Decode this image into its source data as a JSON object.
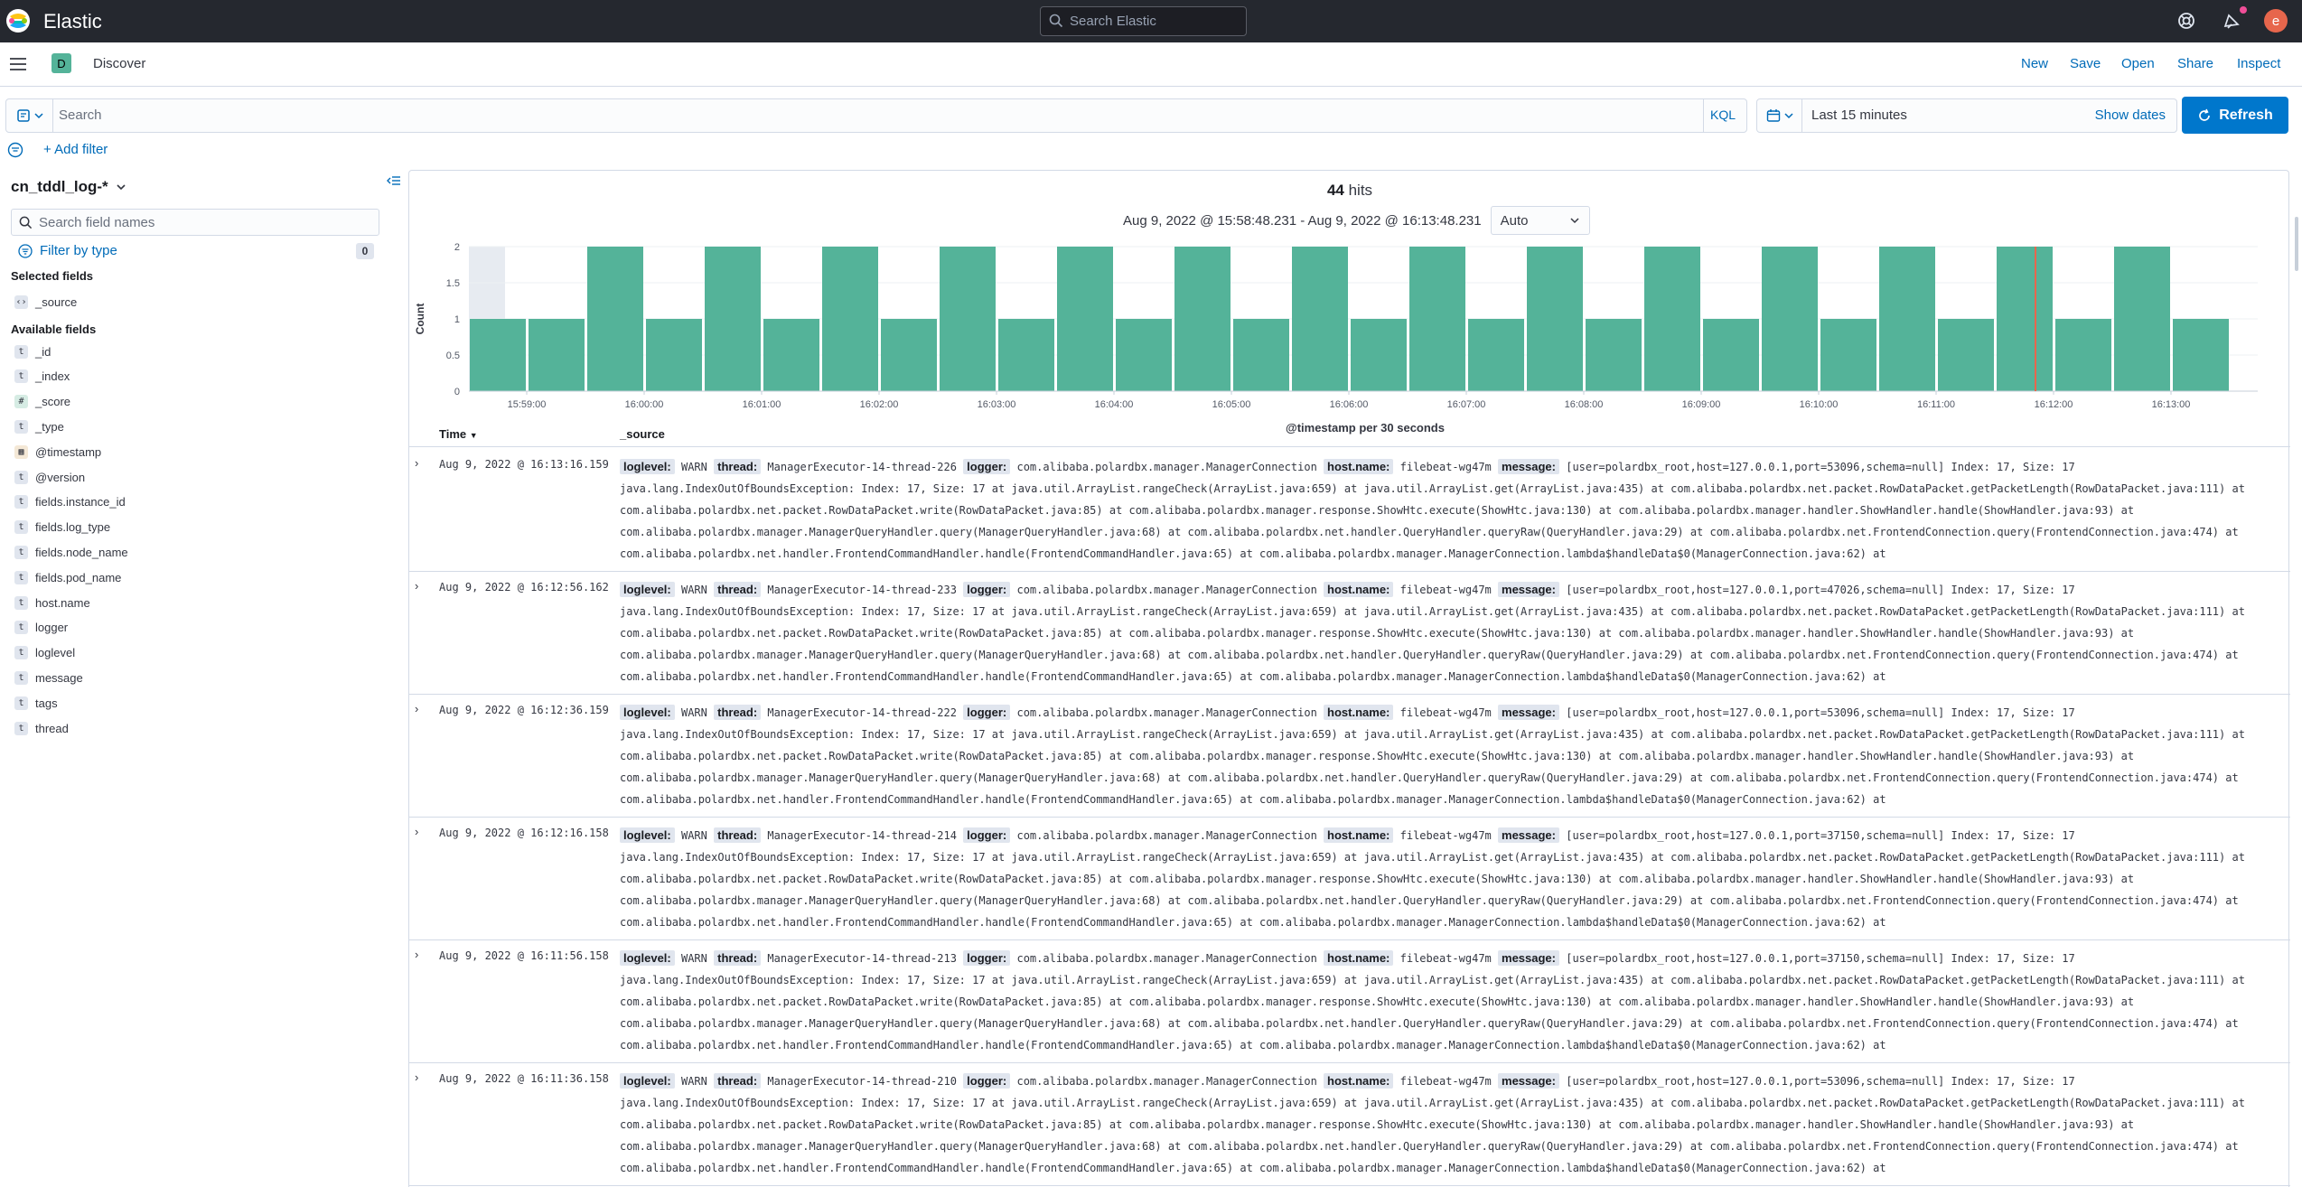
{
  "topbar": {
    "brand": "Elastic",
    "search_placeholder": "Search Elastic",
    "avatar_letter": "e"
  },
  "subbar": {
    "space_letter": "D",
    "breadcrumb": "Discover",
    "actions": [
      "New",
      "Save",
      "Open",
      "Share",
      "Inspect"
    ]
  },
  "query": {
    "placeholder": "Search",
    "language": "KQL",
    "time_range": "Last 15 minutes",
    "show_dates": "Show dates",
    "refresh": "Refresh"
  },
  "filters": {
    "add_filter": "+ Add filter"
  },
  "sidebar": {
    "index_pattern": "cn_tddl_log-*",
    "field_search_placeholder": "Search field names",
    "filter_by_type": "Filter by type",
    "filter_count": "0",
    "selected_heading": "Selected fields",
    "selected_fields": [
      {
        "name": "_source",
        "type": "source"
      }
    ],
    "available_heading": "Available fields",
    "available_fields": [
      {
        "name": "_id",
        "type": "t"
      },
      {
        "name": "_index",
        "type": "t"
      },
      {
        "name": "_score",
        "type": "#"
      },
      {
        "name": "_type",
        "type": "t"
      },
      {
        "name": "@timestamp",
        "type": "date"
      },
      {
        "name": "@version",
        "type": "t"
      },
      {
        "name": "fields.instance_id",
        "type": "t"
      },
      {
        "name": "fields.log_type",
        "type": "t"
      },
      {
        "name": "fields.node_name",
        "type": "t"
      },
      {
        "name": "fields.pod_name",
        "type": "t"
      },
      {
        "name": "host.name",
        "type": "t"
      },
      {
        "name": "logger",
        "type": "t"
      },
      {
        "name": "loglevel",
        "type": "t"
      },
      {
        "name": "message",
        "type": "t"
      },
      {
        "name": "tags",
        "type": "t"
      },
      {
        "name": "thread",
        "type": "t"
      }
    ]
  },
  "results": {
    "hits_count": "44",
    "hits_label": "hits",
    "range_label": "Aug 9, 2022 @ 15:58:48.231 - Aug 9, 2022 @ 16:13:48.231",
    "interval": "Auto"
  },
  "chart_data": {
    "type": "bar",
    "color": "#54b399",
    "ylabel": "Count",
    "xlabel": "@timestamp per 30 seconds",
    "ylim": [
      0,
      2
    ],
    "yticks": [
      "0",
      "0.5",
      "1",
      "1.5",
      "2"
    ],
    "xticks": [
      "15:59:00",
      "16:00:00",
      "16:01:00",
      "16:02:00",
      "16:03:00",
      "16:04:00",
      "16:05:00",
      "16:06:00",
      "16:07:00",
      "16:08:00",
      "16:09:00",
      "16:10:00",
      "16:11:00",
      "16:12:00",
      "16:13:00"
    ],
    "values": [
      1,
      1,
      2,
      1,
      2,
      1,
      2,
      1,
      2,
      1,
      2,
      1,
      2,
      1,
      2,
      1,
      2,
      1,
      2,
      1,
      2,
      1,
      2,
      1,
      2,
      1,
      2,
      1,
      2,
      1
    ]
  },
  "table": {
    "col_time": "Time",
    "col_source": "_source",
    "rows": [
      {
        "time": "Aug 9, 2022 @ 16:13:16.159",
        "thread": "ManagerExecutor-14-thread-226",
        "port": "53096"
      },
      {
        "time": "Aug 9, 2022 @ 16:12:56.162",
        "thread": "ManagerExecutor-14-thread-233",
        "port": "47026"
      },
      {
        "time": "Aug 9, 2022 @ 16:12:36.159",
        "thread": "ManagerExecutor-14-thread-222",
        "port": "53096"
      },
      {
        "time": "Aug 9, 2022 @ 16:12:16.158",
        "thread": "ManagerExecutor-14-thread-214",
        "port": "37150"
      },
      {
        "time": "Aug 9, 2022 @ 16:11:56.158",
        "thread": "ManagerExecutor-14-thread-213",
        "port": "37150"
      },
      {
        "time": "Aug 9, 2022 @ 16:11:36.158",
        "thread": "ManagerExecutor-14-thread-210",
        "port": "53096"
      }
    ],
    "common": {
      "loglevel_key": "loglevel:",
      "loglevel": "WARN",
      "thread_key": "thread:",
      "logger_key": "logger:",
      "logger": "com.alibaba.polardbx.manager.ManagerConnection",
      "host_key": "host.name:",
      "host": "filebeat-wg47m",
      "message_key": "message:",
      "msg_pre": "[user=polardbx_root,host=127.0.0.1,port=",
      "msg_post": ",schema=null] Index: 17, Size: 17",
      "line2": "java.lang.IndexOutOfBoundsException: Index: 17, Size: 17 at java.util.ArrayList.rangeCheck(ArrayList.java:659) at java.util.ArrayList.get(ArrayList.java:435) at com.alibaba.polardbx.net.packet.RowDataPacket.getPacketLength(RowDataPacket.java:111) at",
      "line3": "com.alibaba.polardbx.net.packet.RowDataPacket.write(RowDataPacket.java:85) at com.alibaba.polardbx.manager.response.ShowHtc.execute(ShowHtc.java:130) at com.alibaba.polardbx.manager.handler.ShowHandler.handle(ShowHandler.java:93) at",
      "line4": "com.alibaba.polardbx.manager.ManagerQueryHandler.query(ManagerQueryHandler.java:68) at com.alibaba.polardbx.net.handler.QueryHandler.queryRaw(QueryHandler.java:29) at com.alibaba.polardbx.net.FrontendConnection.query(FrontendConnection.java:474) at",
      "line5": "com.alibaba.polardbx.net.handler.FrontendCommandHandler.handle(FrontendCommandHandler.java:65) at com.alibaba.polardbx.manager.ManagerConnection.lambda$handleData$0(ManagerConnection.java:62) at"
    }
  }
}
